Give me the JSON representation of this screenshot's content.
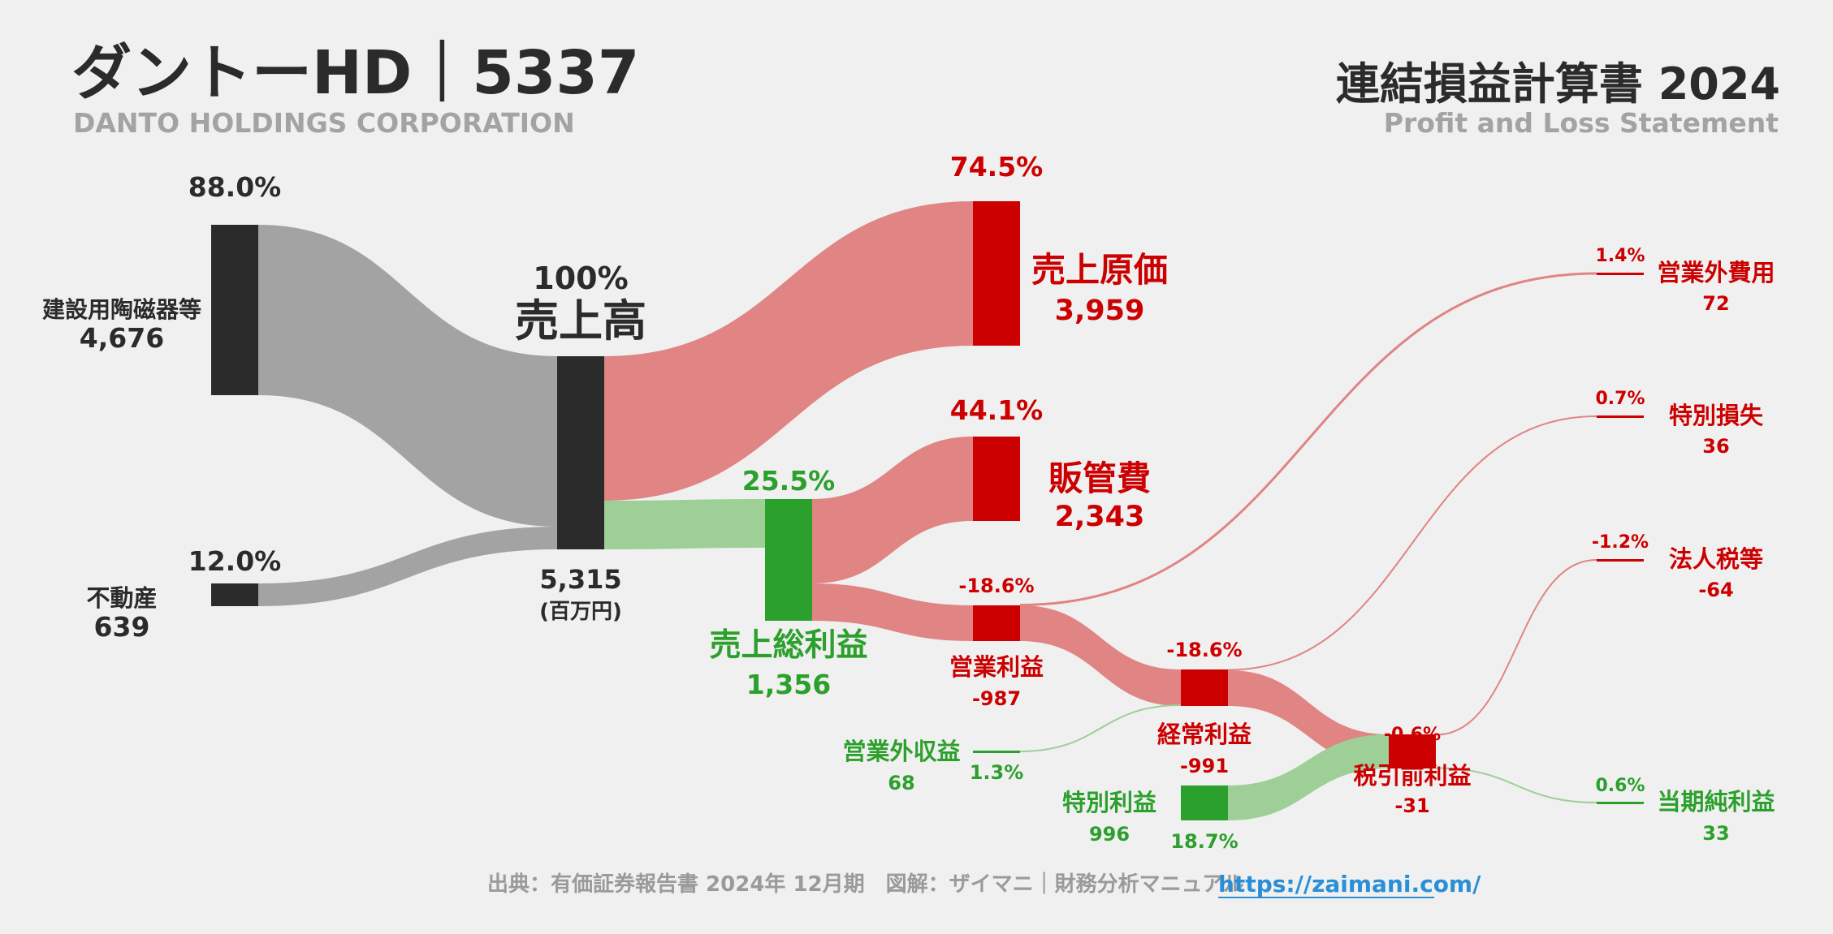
{
  "header": {
    "company": "ダントーHD｜5337",
    "company_en": "DANTO HOLDINGS CORPORATION",
    "report_title": "連結損益計算書 2024",
    "report_en": "Profit and Loss Statement"
  },
  "footer": {
    "source": "出典：有価証券報告書 2024年 12月期　図解：ザイマニ｜財務分析マニュアル",
    "link": "https://zaimani.com/"
  },
  "colors": {
    "dark": "#2b2b2b",
    "gray_flow": "#a3a3a3",
    "red": "#cc0000",
    "red_flow": "#e08484",
    "green": "#2ca02c",
    "green_flow": "#9dcf97"
  },
  "chart_data": {
    "type": "sankey",
    "unit": "(百万円)",
    "nodes": [
      {
        "id": "kenzai",
        "label": "建設用陶磁器等",
        "value": "4,676",
        "pct": "88.0%",
        "kind": "segment"
      },
      {
        "id": "fudosan",
        "label": "不動産",
        "value": "639",
        "pct": "12.0%",
        "kind": "segment"
      },
      {
        "id": "sales",
        "label": "売上高",
        "value": "5,315",
        "pct": "100%",
        "kind": "total"
      },
      {
        "id": "cogs",
        "label": "売上原価",
        "value": "3,959",
        "pct": "74.5%",
        "kind": "cost"
      },
      {
        "id": "gross",
        "label": "売上総利益",
        "value": "1,356",
        "pct": "25.5%",
        "kind": "profit"
      },
      {
        "id": "sga",
        "label": "販管費",
        "value": "2,343",
        "pct": "44.1%",
        "kind": "cost"
      },
      {
        "id": "op",
        "label": "営業利益",
        "value": "-987",
        "pct": "-18.6%",
        "kind": "loss"
      },
      {
        "id": "nonop_inc",
        "label": "営業外収益",
        "value": "68",
        "pct": "1.3%",
        "kind": "profit"
      },
      {
        "id": "nonop_exp",
        "label": "営業外費用",
        "value": "72",
        "pct": "1.4%",
        "kind": "cost"
      },
      {
        "id": "ordinary",
        "label": "経常利益",
        "value": "-991",
        "pct": "-18.6%",
        "kind": "loss"
      },
      {
        "id": "ext_gain",
        "label": "特別利益",
        "value": "996",
        "pct": "18.7%",
        "kind": "profit"
      },
      {
        "id": "ext_loss",
        "label": "特別損失",
        "value": "36",
        "pct": "0.7%",
        "kind": "cost"
      },
      {
        "id": "pretax",
        "label": "税引前利益",
        "value": "-31",
        "pct": "-0.6%",
        "kind": "loss"
      },
      {
        "id": "tax",
        "label": "法人税等",
        "value": "-64",
        "pct": "-1.2%",
        "kind": "cost"
      },
      {
        "id": "net",
        "label": "当期純利益",
        "value": "33",
        "pct": "0.6%",
        "kind": "profit"
      }
    ],
    "links": [
      {
        "source": "kenzai",
        "target": "sales",
        "value": 4676
      },
      {
        "source": "fudosan",
        "target": "sales",
        "value": 639
      },
      {
        "source": "sales",
        "target": "cogs",
        "value": 3959
      },
      {
        "source": "sales",
        "target": "gross",
        "value": 1356
      },
      {
        "source": "gross",
        "target": "sga",
        "value": 2343
      },
      {
        "source": "gross",
        "target": "op",
        "value": -987
      },
      {
        "source": "op",
        "target": "nonop_exp",
        "value": 72
      },
      {
        "source": "op",
        "target": "ordinary",
        "value": -991
      },
      {
        "source": "nonop_inc",
        "target": "ordinary",
        "value": 68
      },
      {
        "source": "ordinary",
        "target": "ext_loss",
        "value": 36
      },
      {
        "source": "ordinary",
        "target": "pretax",
        "value": -31
      },
      {
        "source": "ext_gain",
        "target": "pretax",
        "value": 996
      },
      {
        "source": "pretax",
        "target": "tax",
        "value": -64
      },
      {
        "source": "pretax",
        "target": "net",
        "value": 33
      }
    ]
  }
}
